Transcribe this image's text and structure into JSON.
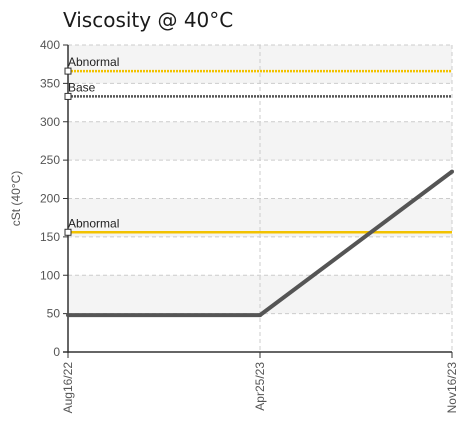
{
  "chart_data": {
    "type": "line",
    "title": "Viscosity @ 40°C",
    "xlabel": "",
    "ylabel": "cSt (40°C)",
    "ylim": [
      0,
      400
    ],
    "yticks": [
      0,
      50,
      100,
      150,
      200,
      250,
      300,
      350,
      400
    ],
    "x": [
      "Aug16/22",
      "Apr25/23",
      "Nov16/23"
    ],
    "grid": true,
    "series": [
      {
        "values": [
          48,
          48,
          235
        ]
      }
    ],
    "reference_lines": [
      {
        "name": "Abnormal",
        "value": 366,
        "style": "dotted"
      },
      {
        "name": "Base",
        "value": 333,
        "style": "dotted"
      },
      {
        "name": "Abnormal",
        "value": 156,
        "style": "solid"
      }
    ],
    "colors": {
      "series": "#555555",
      "abnormal": "#f2c200",
      "base": "#555555",
      "band": "#f4f4f4",
      "grid": "#cccccc"
    }
  }
}
